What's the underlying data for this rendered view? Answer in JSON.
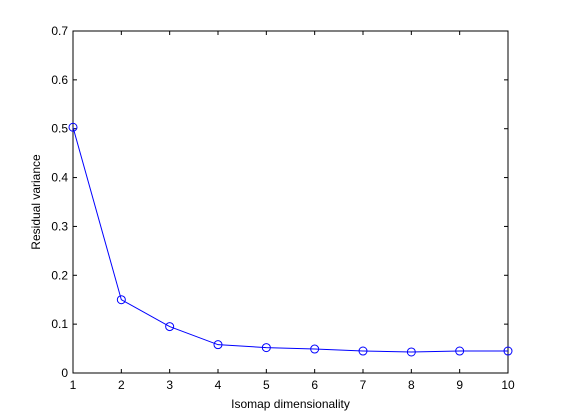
{
  "chart_data": {
    "type": "line",
    "title": "",
    "xlabel": "Isomap dimensionality",
    "ylabel": "Residual variance",
    "xlim": [
      1,
      10
    ],
    "ylim": [
      0,
      0.7
    ],
    "xticks": [
      "1",
      "2",
      "3",
      "4",
      "5",
      "6",
      "7",
      "8",
      "9",
      "10"
    ],
    "yticks": [
      "0",
      "0.1",
      "0.2",
      "0.3",
      "0.4",
      "0.5",
      "0.6",
      "0.7"
    ],
    "grid": false,
    "legend": null,
    "series": [
      {
        "color": "#0000ff",
        "marker": "circle",
        "x": [
          1,
          2,
          3,
          4,
          5,
          6,
          7,
          8,
          9,
          10
        ],
        "y": [
          0.503,
          0.15,
          0.095,
          0.058,
          0.052,
          0.049,
          0.045,
          0.043,
          0.045,
          0.045
        ]
      }
    ]
  }
}
